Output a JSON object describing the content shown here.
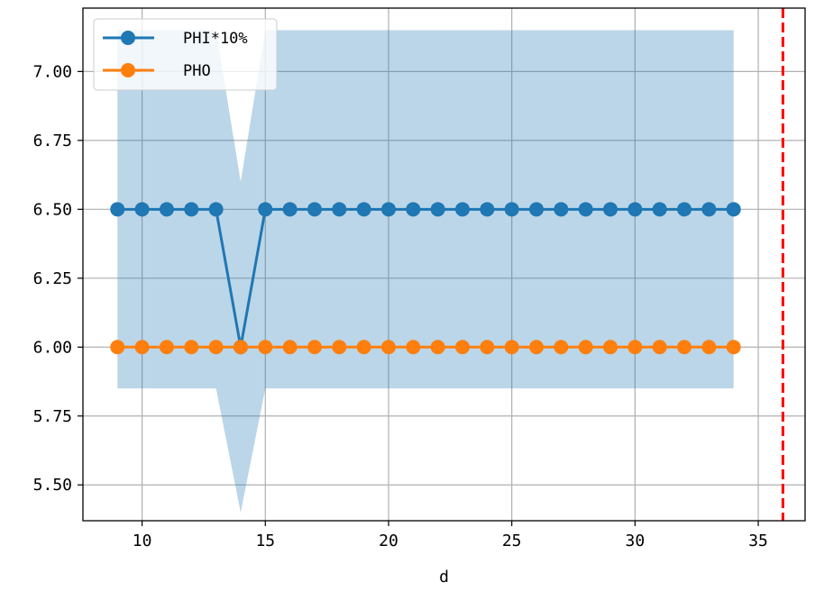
{
  "chart_data": {
    "type": "line",
    "title": "",
    "xlabel": "d",
    "ylabel": "",
    "xlim": [
      7.6,
      36.9
    ],
    "ylim": [
      5.37,
      7.23
    ],
    "xticks": [
      10,
      15,
      20,
      25,
      30,
      35
    ],
    "xtick_labels": [
      "10",
      "15",
      "20",
      "25",
      "30",
      "35"
    ],
    "yticks": [
      5.5,
      5.75,
      6.0,
      6.25,
      6.5,
      6.75,
      7.0
    ],
    "ytick_labels": [
      "5.50",
      "5.75",
      "6.00",
      "6.25",
      "6.50",
      "6.75",
      "7.00"
    ],
    "grid": true,
    "legend_position": "top-left",
    "x": [
      9,
      10,
      11,
      12,
      13,
      14,
      15,
      16,
      17,
      18,
      19,
      20,
      21,
      22,
      23,
      24,
      25,
      26,
      27,
      28,
      29,
      30,
      31,
      32,
      33,
      34
    ],
    "series": [
      {
        "name": "PHI*10%",
        "color": "#1f77b4",
        "marker": "circle",
        "values": [
          6.5,
          6.5,
          6.5,
          6.5,
          6.5,
          6.0,
          6.5,
          6.5,
          6.5,
          6.5,
          6.5,
          6.5,
          6.5,
          6.5,
          6.5,
          6.5,
          6.5,
          6.5,
          6.5,
          6.5,
          6.5,
          6.5,
          6.5,
          6.5,
          6.5,
          6.5
        ]
      },
      {
        "name": "PHO",
        "color": "#ff7f0e",
        "marker": "circle",
        "values": [
          6.0,
          6.0,
          6.0,
          6.0,
          6.0,
          6.0,
          6.0,
          6.0,
          6.0,
          6.0,
          6.0,
          6.0,
          6.0,
          6.0,
          6.0,
          6.0,
          6.0,
          6.0,
          6.0,
          6.0,
          6.0,
          6.0,
          6.0,
          6.0,
          6.0,
          6.0
        ]
      }
    ],
    "band": {
      "color": "#1f77b4",
      "opacity": 0.3,
      "upper": [
        7.15,
        7.15,
        7.15,
        7.15,
        7.15,
        6.6,
        7.15,
        7.15,
        7.15,
        7.15,
        7.15,
        7.15,
        7.15,
        7.15,
        7.15,
        7.15,
        7.15,
        7.15,
        7.15,
        7.15,
        7.15,
        7.15,
        7.15,
        7.15,
        7.15,
        7.15
      ],
      "lower": [
        5.85,
        5.85,
        5.85,
        5.85,
        5.85,
        5.4,
        5.85,
        5.85,
        5.85,
        5.85,
        5.85,
        5.85,
        5.85,
        5.85,
        5.85,
        5.85,
        5.85,
        5.85,
        5.85,
        5.85,
        5.85,
        5.85,
        5.85,
        5.85,
        5.85,
        5.85
      ]
    },
    "vline": {
      "x": 36,
      "color": "#ff0000",
      "style": "dashed"
    }
  }
}
